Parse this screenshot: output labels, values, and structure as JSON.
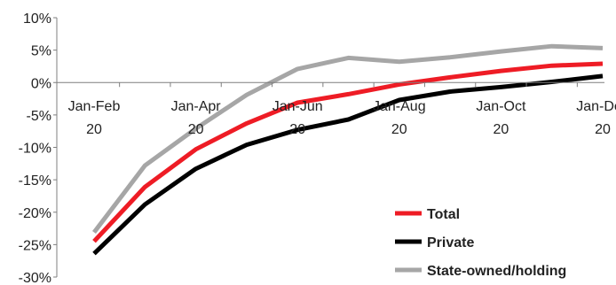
{
  "chart_data": {
    "type": "line",
    "categories": [
      [
        "Jan-Feb",
        "20"
      ],
      [
        "",
        ""
      ],
      [
        "Jan-Apr",
        "20"
      ],
      [
        "",
        ""
      ],
      [
        "Jan-Jun",
        "20"
      ],
      [
        "",
        ""
      ],
      [
        "Jan-Aug",
        "20"
      ],
      [
        "",
        ""
      ],
      [
        "Jan-Oct",
        "20"
      ],
      [
        "",
        ""
      ],
      [
        "Jan-Dec",
        "20"
      ]
    ],
    "ylim": [
      -30,
      10
    ],
    "yticks": [
      10,
      5,
      0,
      -5,
      -10,
      -15,
      -20,
      -25,
      -30
    ],
    "ytick_labels": [
      "10%",
      "5%",
      "0%",
      "-5%",
      "-10%",
      "-15%",
      "-20%",
      "-25%",
      "-30%"
    ],
    "grid": false,
    "legend_position": "bottom-right",
    "series": [
      {
        "name": "Total",
        "color": "#ee1c25",
        "values": [
          -24.5,
          -16.1,
          -10.3,
          -6.3,
          -3.1,
          -1.8,
          -0.3,
          0.8,
          1.8,
          2.6,
          2.9
        ]
      },
      {
        "name": "Private",
        "color": "#000000",
        "values": [
          -26.4,
          -18.8,
          -13.3,
          -9.6,
          -7.3,
          -5.7,
          -2.7,
          -1.4,
          -0.7,
          0.1,
          1.0
        ]
      },
      {
        "name": "State-owned/holding",
        "color": "#a6a6a6",
        "values": [
          -23.1,
          -12.8,
          -7.1,
          -1.9,
          2.1,
          3.8,
          3.2,
          3.9,
          4.8,
          5.6,
          5.3
        ]
      }
    ]
  }
}
